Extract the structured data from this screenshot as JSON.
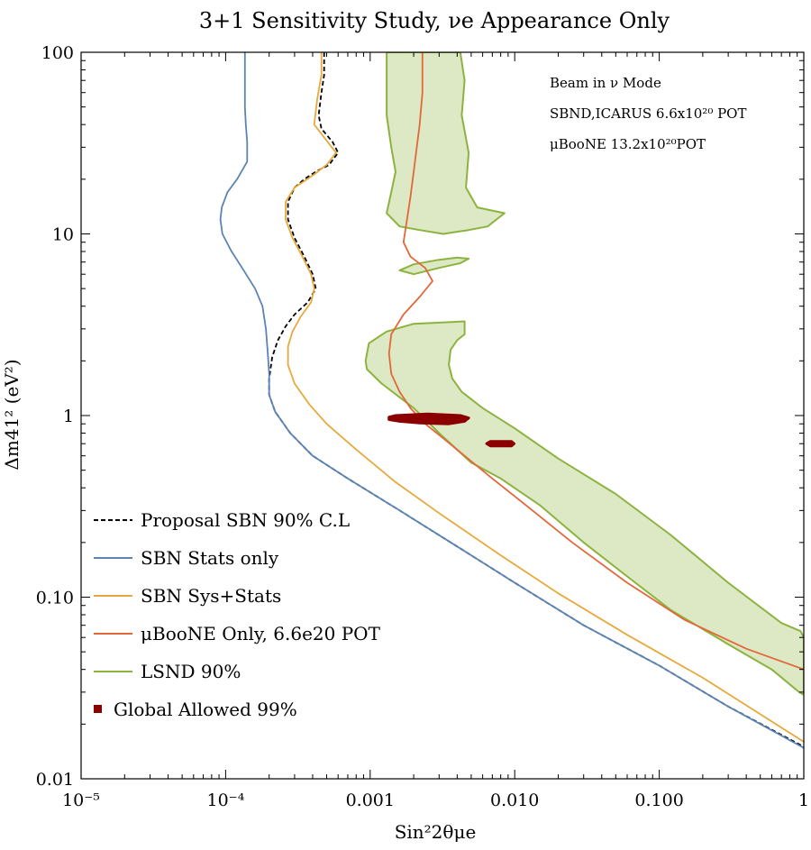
{
  "chart_data": {
    "type": "line",
    "title": "3+1 Sensitivity Study, νe Appearance Only",
    "xlabel": "Sin²2θμe",
    "ylabel": "Δm41² (eV²)",
    "x_scale": "log",
    "y_scale": "log",
    "xlim": [
      1e-05,
      1
    ],
    "ylim": [
      0.01,
      100
    ],
    "x_ticks": [
      {
        "value": 1e-05,
        "label": "10⁻⁵"
      },
      {
        "value": 0.0001,
        "label": "10⁻⁴"
      },
      {
        "value": 0.001,
        "label": "0.001"
      },
      {
        "value": 0.01,
        "label": "0.010"
      },
      {
        "value": 0.1,
        "label": "0.100"
      },
      {
        "value": 1,
        "label": "1"
      }
    ],
    "y_ticks": [
      {
        "value": 0.01,
        "label": "0.01"
      },
      {
        "value": 0.1,
        "label": "0.10"
      },
      {
        "value": 1,
        "label": "1"
      },
      {
        "value": 10,
        "label": "10"
      },
      {
        "value": 100,
        "label": "100"
      }
    ],
    "grid": false,
    "legend_position": "bottom-left",
    "annotations": [
      "Beam in ν Mode",
      "SBND,ICARUS 6.6x10²⁰ POT",
      "μBooNE 13.2x10²⁰POT"
    ],
    "series": [
      {
        "name": "Proposal SBN 90% C.L",
        "kind": "line",
        "color": "#000000",
        "dash": true,
        "points": [
          [
            0.00048,
            100
          ],
          [
            0.00048,
            75
          ],
          [
            0.00046,
            60
          ],
          [
            0.00044,
            45
          ],
          [
            0.00046,
            38
          ],
          [
            0.00055,
            32
          ],
          [
            0.0006,
            28
          ],
          [
            0.00052,
            24
          ],
          [
            0.00042,
            22
          ],
          [
            0.00035,
            20
          ],
          [
            0.0003,
            18
          ],
          [
            0.00027,
            15
          ],
          [
            0.00027,
            12
          ],
          [
            0.0003,
            9.5
          ],
          [
            0.00035,
            7.5
          ],
          [
            0.0004,
            6
          ],
          [
            0.00042,
            5
          ],
          [
            0.00037,
            4.2
          ],
          [
            0.0003,
            3.6
          ],
          [
            0.00026,
            3.1
          ],
          [
            0.00023,
            2.6
          ],
          [
            0.00021,
            2.1
          ],
          [
            0.0002,
            1.6
          ],
          [
            0.0002,
            1.3
          ],
          [
            0.00022,
            1.05
          ],
          [
            0.00028,
            0.8
          ],
          [
            0.0004,
            0.6
          ],
          [
            0.0007,
            0.45
          ],
          [
            0.0015,
            0.31
          ],
          [
            0.004,
            0.19
          ],
          [
            0.01,
            0.12
          ],
          [
            0.03,
            0.07
          ],
          [
            0.1,
            0.042
          ],
          [
            0.3,
            0.025
          ],
          [
            1,
            0.015
          ]
        ]
      },
      {
        "name": "SBN Stats only",
        "kind": "line",
        "color": "#5b84b5",
        "points": [
          [
            0.000136,
            100
          ],
          [
            0.000136,
            70
          ],
          [
            0.000136,
            50
          ],
          [
            0.000138,
            40
          ],
          [
            0.000141,
            32
          ],
          [
            0.000141,
            25
          ],
          [
            0.00012,
            20
          ],
          [
            0.000103,
            17
          ],
          [
            9.4e-05,
            14
          ],
          [
            9.2e-05,
            12
          ],
          [
            9.5e-05,
            10
          ],
          [
            0.00011,
            8
          ],
          [
            0.00013,
            6.5
          ],
          [
            0.00016,
            5
          ],
          [
            0.00018,
            4
          ],
          [
            0.00019,
            3
          ],
          [
            0.000195,
            2.3
          ],
          [
            0.0002,
            1.7
          ],
          [
            0.0002,
            1.3
          ],
          [
            0.00022,
            1.05
          ],
          [
            0.00028,
            0.8
          ],
          [
            0.0004,
            0.6
          ],
          [
            0.0007,
            0.45
          ],
          [
            0.0015,
            0.31
          ],
          [
            0.004,
            0.19
          ],
          [
            0.01,
            0.12
          ],
          [
            0.03,
            0.07
          ],
          [
            0.1,
            0.042
          ],
          [
            0.3,
            0.025
          ],
          [
            1,
            0.0148
          ]
        ]
      },
      {
        "name": "SBN Sys+Stats",
        "kind": "line",
        "color": "#e8a93c",
        "points": [
          [
            0.00046,
            100
          ],
          [
            0.00046,
            75
          ],
          [
            0.00043,
            55
          ],
          [
            0.00041,
            40
          ],
          [
            0.00048,
            34
          ],
          [
            0.00058,
            28
          ],
          [
            0.0005,
            24
          ],
          [
            0.0004,
            21
          ],
          [
            0.0003,
            18
          ],
          [
            0.00026,
            15
          ],
          [
            0.00026,
            12
          ],
          [
            0.00029,
            9.5
          ],
          [
            0.00034,
            7.5
          ],
          [
            0.00039,
            6
          ],
          [
            0.00041,
            5
          ],
          [
            0.00039,
            4.2
          ],
          [
            0.00033,
            3.5
          ],
          [
            0.00029,
            2.9
          ],
          [
            0.00027,
            2.4
          ],
          [
            0.00027,
            1.9
          ],
          [
            0.0003,
            1.5
          ],
          [
            0.00038,
            1.15
          ],
          [
            0.0005,
            0.9
          ],
          [
            0.0008,
            0.65
          ],
          [
            0.0015,
            0.43
          ],
          [
            0.003,
            0.29
          ],
          [
            0.008,
            0.17
          ],
          [
            0.02,
            0.105
          ],
          [
            0.06,
            0.062
          ],
          [
            0.2,
            0.036
          ],
          [
            1,
            0.016
          ]
        ]
      },
      {
        "name": "μBooNE Only, 6.6e20 POT",
        "kind": "line",
        "color": "#e2683a",
        "points": [
          [
            0.0023,
            100
          ],
          [
            0.0023,
            60
          ],
          [
            0.0022,
            40
          ],
          [
            0.0021,
            30
          ],
          [
            0.002,
            22
          ],
          [
            0.0019,
            16
          ],
          [
            0.0018,
            12
          ],
          [
            0.0017,
            9
          ],
          [
            0.0019,
            7.5
          ],
          [
            0.0024,
            6.5
          ],
          [
            0.0027,
            5.5
          ],
          [
            0.0022,
            4.5
          ],
          [
            0.0017,
            3.6
          ],
          [
            0.0014,
            2.8
          ],
          [
            0.00135,
            2.2
          ],
          [
            0.0014,
            1.7
          ],
          [
            0.0016,
            1.35
          ],
          [
            0.0019,
            1.1
          ],
          [
            0.0024,
            0.9
          ],
          [
            0.0032,
            0.75
          ],
          [
            0.0045,
            0.6
          ],
          [
            0.007,
            0.45
          ],
          [
            0.012,
            0.32
          ],
          [
            0.025,
            0.2
          ],
          [
            0.06,
            0.12
          ],
          [
            0.15,
            0.075
          ],
          [
            0.4,
            0.052
          ],
          [
            1,
            0.04
          ]
        ]
      },
      {
        "name": "LSND 90%",
        "kind": "polygon",
        "color": "#8db33f",
        "fill": "#dde8c4",
        "regions": [
          [
            [
              0.0013,
              100
            ],
            [
              0.0042,
              100
            ],
            [
              0.0045,
              70
            ],
            [
              0.0043,
              45
            ],
            [
              0.0048,
              28
            ],
            [
              0.0046,
              18
            ],
            [
              0.0055,
              14
            ],
            [
              0.0085,
              13
            ],
            [
              0.0065,
              11
            ],
            [
              0.0048,
              10.5
            ],
            [
              0.0032,
              10
            ],
            [
              0.0022,
              10.5
            ],
            [
              0.0016,
              11
            ],
            [
              0.0013,
              13
            ],
            [
              0.0014,
              17
            ],
            [
              0.0015,
              22
            ],
            [
              0.0014,
              30
            ],
            [
              0.0013,
              45
            ],
            [
              0.0013,
              70
            ]
          ],
          [
            [
              0.0016,
              6.3
            ],
            [
              0.002,
              6.8
            ],
            [
              0.003,
              7.2
            ],
            [
              0.004,
              7.4
            ],
            [
              0.0048,
              7.3
            ],
            [
              0.0042,
              6.9
            ],
            [
              0.003,
              6.5
            ],
            [
              0.002,
              6
            ]
          ],
          [
            [
              0.00093,
              2
            ],
            [
              0.00098,
              2.5
            ],
            [
              0.0013,
              2.9
            ],
            [
              0.002,
              3.2
            ],
            [
              0.0045,
              3.3
            ],
            [
              0.0045,
              2.8
            ],
            [
              0.004,
              2.6
            ],
            [
              0.0036,
              2.3
            ],
            [
              0.0035,
              1.9
            ],
            [
              0.0037,
              1.6
            ],
            [
              0.0043,
              1.35
            ],
            [
              0.006,
              1.1
            ],
            [
              0.01,
              0.85
            ],
            [
              0.02,
              0.58
            ],
            [
              0.05,
              0.37
            ],
            [
              0.12,
              0.22
            ],
            [
              0.3,
              0.12
            ],
            [
              0.7,
              0.072
            ],
            [
              0.95,
              0.065
            ],
            [
              1,
              0.06
            ],
            [
              1,
              0.029
            ],
            [
              0.93,
              0.03
            ],
            [
              0.6,
              0.04
            ],
            [
              0.3,
              0.055
            ],
            [
              0.12,
              0.085
            ],
            [
              0.06,
              0.13
            ],
            [
              0.03,
              0.2
            ],
            [
              0.015,
              0.32
            ],
            [
              0.008,
              0.45
            ],
            [
              0.005,
              0.55
            ],
            [
              0.003,
              0.8
            ],
            [
              0.002,
              1.1
            ],
            [
              0.0012,
              1.5
            ],
            [
              0.00095,
              1.8
            ]
          ]
        ]
      },
      {
        "name": "Global Allowed 99%",
        "kind": "blob",
        "color": "#8b0000",
        "regions": [
          [
            [
              0.00135,
              0.98
            ],
            [
              0.0015,
              1.0
            ],
            [
              0.0025,
              1.02
            ],
            [
              0.0042,
              1.0
            ],
            [
              0.0048,
              0.97
            ],
            [
              0.0045,
              0.93
            ],
            [
              0.0035,
              0.9
            ],
            [
              0.0022,
              0.91
            ],
            [
              0.0016,
              0.93
            ],
            [
              0.00135,
              0.95
            ]
          ],
          [
            [
              0.0064,
              0.7
            ],
            [
              0.0068,
              0.72
            ],
            [
              0.0095,
              0.72
            ],
            [
              0.0099,
              0.7
            ],
            [
              0.0095,
              0.68
            ],
            [
              0.0068,
              0.68
            ]
          ]
        ]
      }
    ]
  }
}
